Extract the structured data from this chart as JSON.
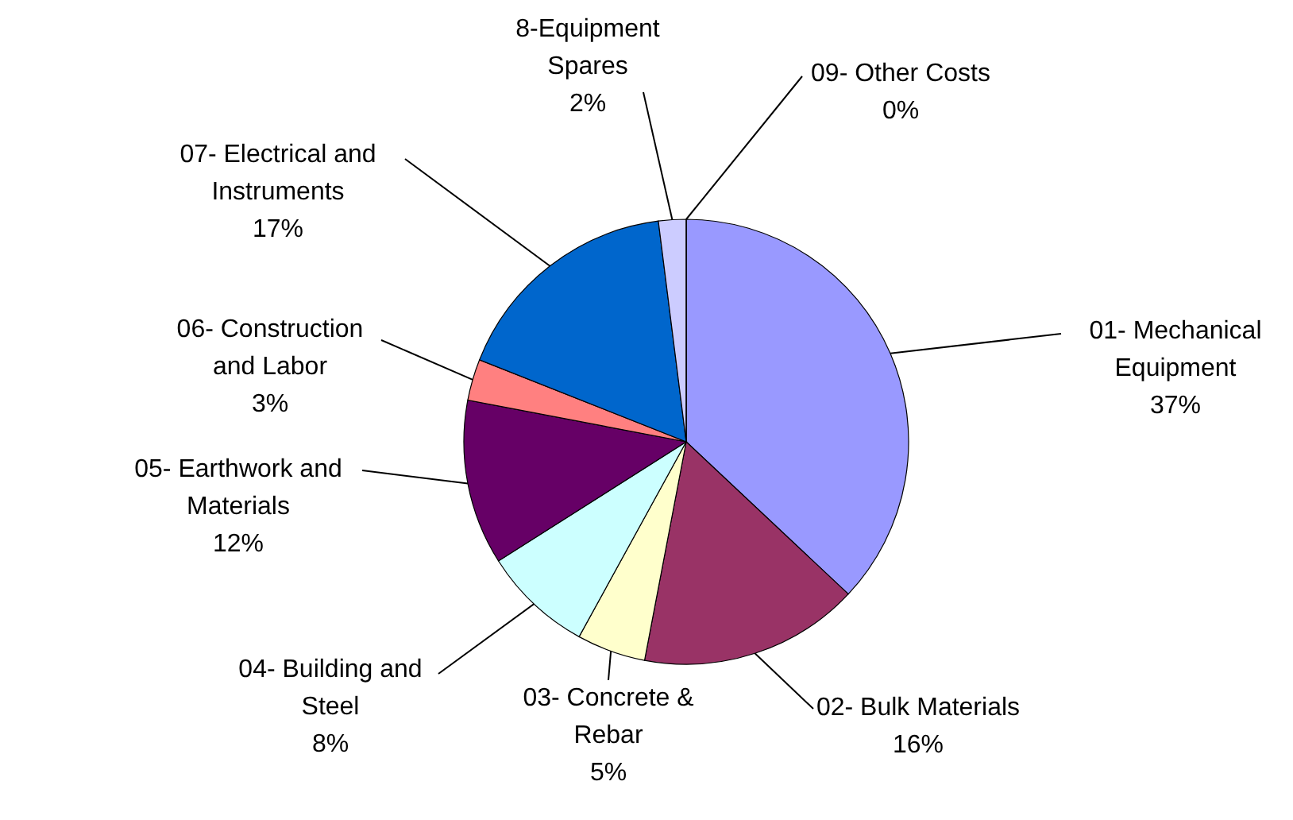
{
  "chart_data": {
    "type": "pie",
    "categories": [
      "01- Mechanical Equipment",
      "02- Bulk Materials",
      "03- Concrete & Rebar",
      "04- Building and Steel",
      "05- Earthwork and Materials",
      "06- Construction and Labor",
      "07- Electrical and Instruments",
      "8-Equipment Spares",
      "09- Other Costs"
    ],
    "values": [
      37,
      16,
      5,
      8,
      12,
      3,
      17,
      2,
      0
    ],
    "value_labels": [
      "37%",
      "16%",
      "5%",
      "8%",
      "12%",
      "3%",
      "17%",
      "2%",
      "0%"
    ],
    "colors": [
      "#9999ff",
      "#993366",
      "#ffffcc",
      "#ccffff",
      "#660066",
      "#ff8080",
      "#0066cc",
      "#ccccff",
      "#000080"
    ]
  }
}
